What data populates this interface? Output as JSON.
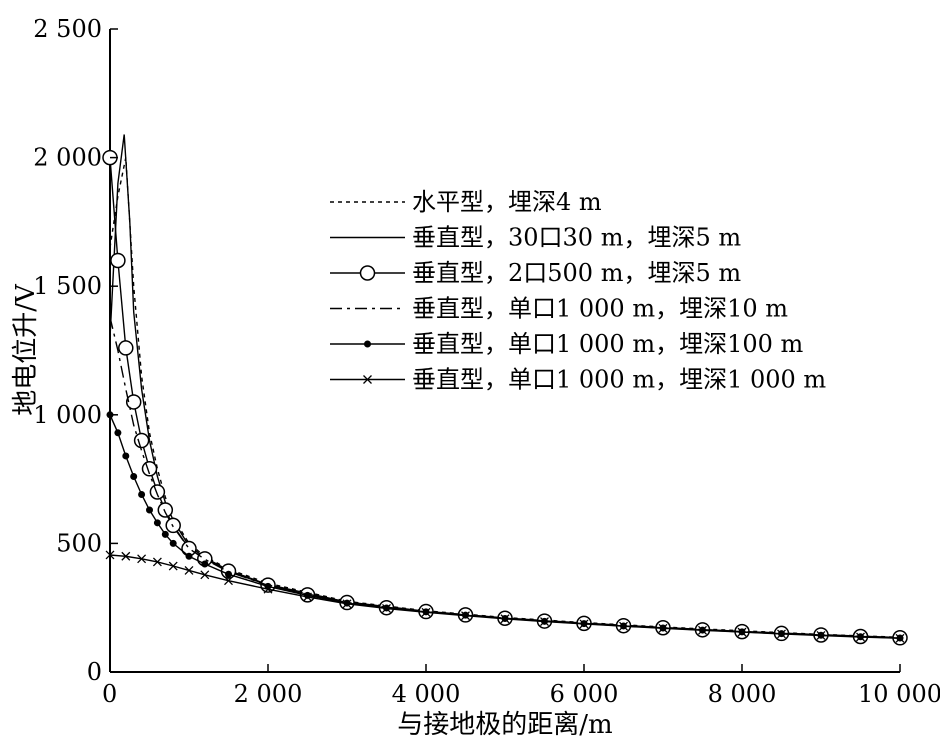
{
  "chart_data": {
    "type": "line",
    "title": "",
    "xlabel": "与接地极的距离/m",
    "ylabel": "地电位升/V",
    "xlim": [
      0,
      10000
    ],
    "ylim": [
      0,
      2500
    ],
    "x_ticks": [
      {
        "value": 0,
        "label": "0"
      },
      {
        "value": 2000,
        "label": "2 000"
      },
      {
        "value": 4000,
        "label": "4 000"
      },
      {
        "value": 6000,
        "label": "6 000"
      },
      {
        "value": 8000,
        "label": "8 000"
      },
      {
        "value": 10000,
        "label": "10 000"
      }
    ],
    "y_ticks": [
      {
        "value": 0,
        "label": "0"
      },
      {
        "value": 500,
        "label": "500"
      },
      {
        "value": 1000,
        "label": "1 000"
      },
      {
        "value": 1500,
        "label": "1 500"
      },
      {
        "value": 2000,
        "label": "2 000"
      },
      {
        "value": 2500,
        "label": "2 500"
      }
    ],
    "grid": false,
    "legend_position": "top-right",
    "series": [
      {
        "name": "水平型，埋深4 m",
        "style": "dotted",
        "marker": "none",
        "color": "#000000",
        "points": [
          [
            0,
            1650
          ],
          [
            100,
            1850
          ],
          [
            200,
            2000
          ],
          [
            300,
            1500
          ],
          [
            400,
            1150
          ],
          [
            500,
            930
          ],
          [
            600,
            790
          ],
          [
            700,
            680
          ],
          [
            800,
            600
          ],
          [
            1000,
            500
          ],
          [
            1200,
            450
          ],
          [
            1500,
            400
          ],
          [
            2000,
            345
          ],
          [
            3000,
            275
          ],
          [
            4000,
            238
          ],
          [
            5000,
            212
          ],
          [
            6000,
            192
          ],
          [
            7000,
            175
          ],
          [
            8000,
            160
          ],
          [
            9000,
            146
          ],
          [
            10000,
            135
          ]
        ]
      },
      {
        "name": "垂直型，30口30 m，埋深5 m",
        "style": "solid",
        "marker": "none",
        "color": "#000000",
        "points": [
          [
            0,
            1300
          ],
          [
            100,
            1900
          ],
          [
            180,
            2090
          ],
          [
            250,
            1750
          ],
          [
            300,
            1400
          ],
          [
            400,
            1100
          ],
          [
            500,
            900
          ],
          [
            600,
            760
          ],
          [
            700,
            660
          ],
          [
            800,
            590
          ],
          [
            1000,
            490
          ],
          [
            1200,
            445
          ],
          [
            1500,
            395
          ],
          [
            2000,
            340
          ],
          [
            3000,
            272
          ],
          [
            4000,
            236
          ],
          [
            5000,
            210
          ],
          [
            6000,
            190
          ],
          [
            7000,
            173
          ],
          [
            8000,
            158
          ],
          [
            9000,
            145
          ],
          [
            10000,
            134
          ]
        ]
      },
      {
        "name": "垂直型，2口500 m，埋深5 m",
        "style": "solid",
        "marker": "circle",
        "color": "#000000",
        "points": [
          [
            0,
            2000
          ],
          [
            100,
            1600
          ],
          [
            200,
            1260
          ],
          [
            300,
            1050
          ],
          [
            400,
            900
          ],
          [
            500,
            790
          ],
          [
            600,
            700
          ],
          [
            700,
            630
          ],
          [
            800,
            570
          ],
          [
            1000,
            480
          ],
          [
            1200,
            440
          ],
          [
            1500,
            392
          ],
          [
            2000,
            338
          ],
          [
            2500,
            300
          ],
          [
            3000,
            270
          ],
          [
            3500,
            250
          ],
          [
            4000,
            235
          ],
          [
            4500,
            222
          ],
          [
            5000,
            209
          ],
          [
            5500,
            198
          ],
          [
            6000,
            189
          ],
          [
            6500,
            180
          ],
          [
            7000,
            172
          ],
          [
            7500,
            164
          ],
          [
            8000,
            157
          ],
          [
            8500,
            150
          ],
          [
            9000,
            144
          ],
          [
            9500,
            138
          ],
          [
            10000,
            133
          ]
        ]
      },
      {
        "name": "垂直型，单口1 000 m，埋深10 m",
        "style": "dashdot",
        "marker": "none",
        "color": "#000000",
        "points": [
          [
            0,
            1380
          ],
          [
            100,
            1250
          ],
          [
            200,
            1100
          ],
          [
            300,
            960
          ],
          [
            400,
            860
          ],
          [
            500,
            770
          ],
          [
            600,
            690
          ],
          [
            700,
            620
          ],
          [
            800,
            565
          ],
          [
            1000,
            480
          ],
          [
            1200,
            438
          ],
          [
            1500,
            390
          ],
          [
            2000,
            337
          ],
          [
            3000,
            270
          ],
          [
            4000,
            235
          ],
          [
            5000,
            209
          ],
          [
            6000,
            189
          ],
          [
            7000,
            172
          ],
          [
            8000,
            157
          ],
          [
            9000,
            144
          ],
          [
            10000,
            133
          ]
        ]
      },
      {
        "name": "垂直型，单口1 000 m，埋深100 m",
        "style": "solid",
        "marker": "dot",
        "color": "#000000",
        "points": [
          [
            0,
            1000
          ],
          [
            100,
            930
          ],
          [
            200,
            840
          ],
          [
            300,
            760
          ],
          [
            400,
            690
          ],
          [
            500,
            630
          ],
          [
            600,
            580
          ],
          [
            700,
            535
          ],
          [
            800,
            500
          ],
          [
            1000,
            450
          ],
          [
            1200,
            420
          ],
          [
            1500,
            380
          ],
          [
            2000,
            333
          ],
          [
            2500,
            298
          ],
          [
            3000,
            268
          ],
          [
            3500,
            249
          ],
          [
            4000,
            234
          ],
          [
            4500,
            221
          ],
          [
            5000,
            208
          ],
          [
            5500,
            197
          ],
          [
            6000,
            188
          ],
          [
            6500,
            179
          ],
          [
            7000,
            171
          ],
          [
            7500,
            163
          ],
          [
            8000,
            156
          ],
          [
            8500,
            149
          ],
          [
            9000,
            143
          ],
          [
            9500,
            137
          ],
          [
            10000,
            132
          ]
        ]
      },
      {
        "name": "垂直型，单口1 000 m，埋深1 000 m",
        "style": "solid",
        "marker": "x",
        "color": "#000000",
        "points": [
          [
            0,
            455
          ],
          [
            200,
            450
          ],
          [
            400,
            440
          ],
          [
            600,
            428
          ],
          [
            800,
            412
          ],
          [
            1000,
            395
          ],
          [
            1200,
            378
          ],
          [
            1500,
            355
          ],
          [
            2000,
            322
          ],
          [
            2500,
            292
          ],
          [
            3000,
            265
          ],
          [
            3500,
            247
          ],
          [
            4000,
            232
          ],
          [
            4500,
            219
          ],
          [
            5000,
            207
          ],
          [
            5500,
            196
          ],
          [
            6000,
            187
          ],
          [
            6500,
            178
          ],
          [
            7000,
            170
          ],
          [
            7500,
            162
          ],
          [
            8000,
            155
          ],
          [
            8500,
            148
          ],
          [
            9000,
            142
          ],
          [
            9500,
            136
          ],
          [
            10000,
            131
          ]
        ]
      }
    ]
  }
}
